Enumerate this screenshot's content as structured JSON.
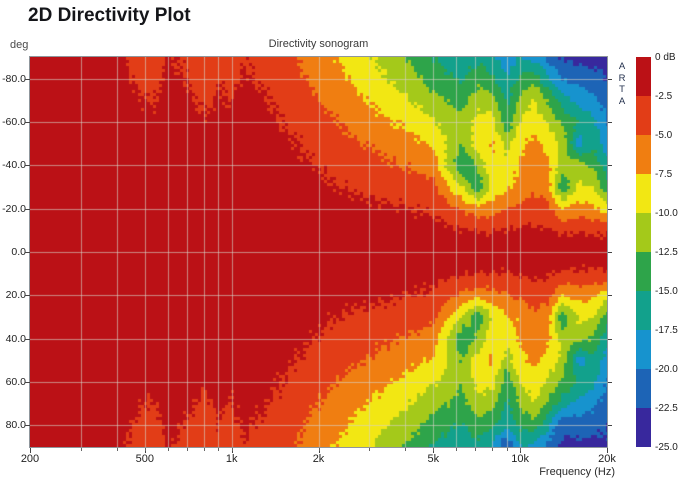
{
  "page_title": "2D Directivity Plot",
  "chart": {
    "title": "Directivity sonogram",
    "y_unit_label": "deg",
    "x_axis_label": "Frequency (Hz)",
    "watermark": "ARTA",
    "x_ticks": [
      "200",
      "500",
      "1k",
      "2k",
      "5k",
      "10k",
      "20k"
    ],
    "x_tick_freqs": [
      200,
      500,
      1000,
      2000,
      5000,
      10000,
      20000
    ],
    "y_ticks": [
      "-80.0",
      "-60.0",
      "-40.0",
      "-20.0",
      "0.0",
      "20.0",
      "40.0",
      "60.0",
      "80.0"
    ],
    "y_tick_values": [
      -80,
      -60,
      -40,
      -20,
      0,
      20,
      40,
      60,
      80
    ],
    "gridline_freqs": [
      300,
      400,
      500,
      600,
      700,
      800,
      900,
      1000,
      2000,
      3000,
      4000,
      5000,
      6000,
      7000,
      8000,
      9000,
      10000
    ],
    "gridline_angles": [
      -80,
      -60,
      -40,
      -20,
      0,
      20,
      40,
      60,
      80
    ],
    "grid_color": "rgba(214,210,198,0.62)"
  },
  "colorbar": {
    "labels": [
      "0 dB",
      "-2.5",
      "-5.0",
      "-7.5",
      "-10.0",
      "-12.5",
      "-15.0",
      "-17.5",
      "-20.0",
      "-22.5",
      "-25.0"
    ],
    "colors": [
      "#bb1116",
      "#e23d17",
      "#f07e11",
      "#f2e713",
      "#a4c91a",
      "#2ea44a",
      "#12a18c",
      "#1793ce",
      "#1d64b6",
      "#38289d"
    ]
  },
  "chart_data": {
    "type": "heatmap",
    "title": "Directivity sonogram",
    "xlabel": "Frequency (Hz)",
    "ylabel": "deg",
    "x_scale": "log",
    "x_range_hz": [
      200,
      20000
    ],
    "y_range_deg": [
      -90,
      90
    ],
    "value_unit": "dB",
    "levels_db": [
      0,
      -2.5,
      -5,
      -7.5,
      -10,
      -12.5,
      -15,
      -17.5,
      -20,
      -22.5,
      -25
    ],
    "legend_position": "right",
    "frequencies_hz": [
      200,
      315,
      400,
      480,
      530,
      600,
      700,
      800,
      900,
      1000,
      1100,
      1300,
      1600,
      2000,
      2500,
      3150,
      4000,
      5000,
      6300,
      7100,
      8000,
      9000,
      10000,
      11200,
      12500,
      14000,
      16000,
      18000,
      20000
    ],
    "angles_deg": [
      -90,
      -80,
      -70,
      -60,
      -50,
      -40,
      -30,
      -20,
      -10,
      0,
      10,
      20,
      30,
      40,
      50,
      60,
      70,
      80,
      90
    ],
    "values_db": [
      [
        -1.2,
        -1.3,
        -1.7,
        -3.6,
        -4.1,
        -2.3,
        -3.1,
        -4.3,
        -3.2,
        -3.9,
        -2.6,
        -3.4,
        -4.6,
        -6.6,
        -8.2,
        -10.2,
        -12.6,
        -15.2,
        -17,
        -15.5,
        -16.5,
        -19.5,
        -17.5,
        -18.5,
        -21,
        -23,
        -23.5,
        -23.5,
        -23
      ],
      [
        -1,
        -1.1,
        -1.3,
        -3.1,
        -3.5,
        -1.9,
        -2.6,
        -3.8,
        -2.7,
        -3.3,
        -2.2,
        -2.9,
        -4.1,
        -5.9,
        -7.4,
        -9.2,
        -11.2,
        -13.6,
        -15.3,
        -13.5,
        -14.5,
        -17,
        -14.5,
        -13.5,
        -17,
        -20,
        -21,
        -21.5,
        -22.6
      ],
      [
        -1,
        -1,
        -1.1,
        -2.3,
        -2.7,
        -1.5,
        -2,
        -3,
        -2.1,
        -2.6,
        -1.7,
        -2.3,
        -3.5,
        -5,
        -6.4,
        -8,
        -9.6,
        -11.7,
        -13.5,
        -11,
        -11.5,
        -15.5,
        -12,
        -9.8,
        -13,
        -16.5,
        -18.5,
        -19.5,
        -21
      ],
      [
        -1,
        -1,
        -1,
        -1.6,
        -1.9,
        -1.2,
        -1.5,
        -2.2,
        -1.6,
        -1.9,
        -1.3,
        -1.8,
        -2.9,
        -4.1,
        -5.4,
        -6.7,
        -8,
        -9.7,
        -12,
        -9.3,
        -8.8,
        -14.5,
        -9.8,
        -8.5,
        -10.5,
        -13,
        -15,
        -17,
        -20
      ],
      [
        -1,
        -1,
        -1,
        -1.2,
        -1.3,
        -1,
        -1.1,
        -1.5,
        -1.2,
        -1.3,
        -1.1,
        -1.4,
        -2.3,
        -3.3,
        -4.4,
        -5.4,
        -6.5,
        -7.8,
        -12.5,
        -8.6,
        -7.2,
        -11,
        -8.2,
        -6.8,
        -8.5,
        -10.5,
        -19,
        -15.5,
        -19
      ],
      [
        -1,
        -1,
        -1,
        -1,
        -1,
        -1,
        -1,
        -1.1,
        -1,
        -1,
        -1,
        -1.1,
        -1.8,
        -2.6,
        -3.5,
        -4.3,
        -5.1,
        -6.1,
        -15,
        -12,
        -8,
        -9,
        -7.2,
        -6,
        -7,
        -11,
        -11,
        -13,
        -16.5
      ],
      [
        -1,
        -1,
        -1,
        -1,
        -1,
        -1,
        -1,
        -1,
        -1,
        -1,
        -1,
        -1,
        -1.4,
        -2,
        -2.7,
        -3.1,
        -3.6,
        -4.4,
        -10,
        -14.5,
        -9.5,
        -8,
        -6.8,
        -5.6,
        -6.5,
        -14.5,
        -9.5,
        -10,
        -14
      ],
      [
        -1,
        -1,
        -1,
        -1,
        -1,
        -1,
        -1,
        -1,
        -1,
        -1,
        -1,
        -1,
        -1.1,
        -1.4,
        -1.9,
        -2.1,
        -2.4,
        -2.8,
        -5.5,
        -6.5,
        -6,
        -5,
        -4.4,
        -3.8,
        -4.2,
        -7.5,
        -6.5,
        -7,
        -9
      ],
      [
        -1,
        -1,
        -1,
        -1,
        -1,
        -1,
        -1,
        -1,
        -1,
        -1,
        -1,
        -1,
        -1,
        -1,
        -1.2,
        -1.3,
        -1.5,
        -1.7,
        -2.3,
        -2.4,
        -2.6,
        -2.4,
        -2.2,
        -2,
        -2.2,
        -2.8,
        -2.8,
        -3,
        -2.8
      ],
      [
        -1,
        -1,
        -1,
        -1,
        -1,
        -1,
        -1,
        -1,
        -1,
        -1,
        -1,
        -1,
        -1,
        -1,
        -1,
        -1,
        -1,
        -1,
        -1.1,
        -1.1,
        -1.1,
        -1.1,
        -1,
        -1,
        -1,
        -1,
        -1,
        -1,
        -1
      ],
      [
        -1,
        -1,
        -1,
        -1,
        -1,
        -1,
        -1,
        -1,
        -1,
        -1,
        -1,
        -1,
        -1,
        -1,
        -1.2,
        -1.3,
        -1.5,
        -1.7,
        -2.3,
        -2.4,
        -2.6,
        -2.4,
        -2.2,
        -2,
        -2.2,
        -2.8,
        -2.8,
        -3,
        -2.8
      ],
      [
        -1,
        -1,
        -1,
        -1,
        -1,
        -1,
        -1,
        -1,
        -1,
        -1,
        -1,
        -1,
        -1.1,
        -1.4,
        -1.9,
        -2.1,
        -2.4,
        -2.8,
        -5.5,
        -6.5,
        -6,
        -5,
        -4.4,
        -3.8,
        -4.2,
        -7.5,
        -6.5,
        -7,
        -9
      ],
      [
        -1,
        -1,
        -1,
        -1,
        -1,
        -1,
        -1,
        -1,
        -1,
        -1,
        -1,
        -1,
        -1.4,
        -2,
        -2.7,
        -3.1,
        -3.6,
        -4.4,
        -10,
        -14.5,
        -9.5,
        -8,
        -6.8,
        -5.6,
        -6.5,
        -14.5,
        -9.5,
        -10,
        -14
      ],
      [
        -1,
        -1,
        -1,
        -1,
        -1,
        -1,
        -1,
        -1.1,
        -1,
        -1,
        -1,
        -1.1,
        -1.8,
        -2.6,
        -3.5,
        -4.3,
        -5.1,
        -6.1,
        -15,
        -12,
        -8,
        -9,
        -7.2,
        -6,
        -7,
        -11,
        -11,
        -13,
        -16.5
      ],
      [
        -1,
        -1,
        -1,
        -1.2,
        -1.3,
        -1,
        -1.1,
        -1.5,
        -1.2,
        -1.3,
        -1.1,
        -1.4,
        -2.3,
        -3.3,
        -4.4,
        -5.4,
        -6.5,
        -7.8,
        -12.5,
        -8.6,
        -7.2,
        -11,
        -8.2,
        -6.8,
        -8.5,
        -10.5,
        -19,
        -15.5,
        -19
      ],
      [
        -1,
        -1,
        -1,
        -1.6,
        -1.9,
        -1.2,
        -1.5,
        -2.2,
        -1.6,
        -1.9,
        -1.3,
        -1.8,
        -2.9,
        -4.1,
        -5.4,
        -6.7,
        -8,
        -9.7,
        -12,
        -9.3,
        -8.8,
        -14.5,
        -9.8,
        -8.5,
        -10.5,
        -13,
        -15,
        -17,
        -20
      ],
      [
        -1,
        -1,
        -1.1,
        -2.3,
        -2.7,
        -1.5,
        -2,
        -3,
        -2.1,
        -2.6,
        -1.7,
        -2.3,
        -3.5,
        -5,
        -6.4,
        -8,
        -9.6,
        -11.7,
        -13.5,
        -11,
        -11.5,
        -15.5,
        -12,
        -9.8,
        -13,
        -16.5,
        -18.5,
        -19.5,
        -21
      ],
      [
        -1,
        -1.1,
        -1.3,
        -3.1,
        -3.5,
        -1.9,
        -2.6,
        -3.8,
        -2.7,
        -3.3,
        -2.2,
        -2.9,
        -4.1,
        -5.9,
        -7.4,
        -9.2,
        -11.2,
        -13.6,
        -15.3,
        -13.5,
        -14.5,
        -17,
        -14.5,
        -13.5,
        -17,
        -22,
        -21,
        -21.5,
        -22.6
      ],
      [
        -1.2,
        -1.3,
        -1.7,
        -3.6,
        -4.1,
        -2.3,
        -3.1,
        -4.3,
        -3.2,
        -3.9,
        -2.6,
        -3.4,
        -4.6,
        -6.6,
        -8.2,
        -10.2,
        -12.6,
        -15.2,
        -17,
        -15.5,
        -18,
        -23,
        -17.5,
        -18.5,
        -21,
        -23,
        -23.5,
        -23.5,
        -23
      ]
    ]
  }
}
